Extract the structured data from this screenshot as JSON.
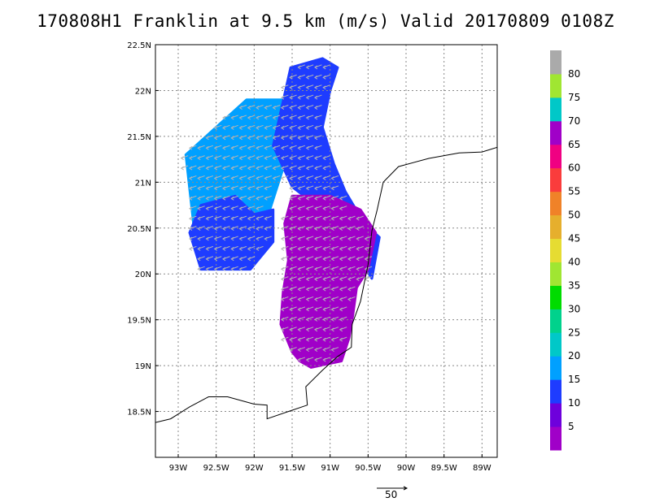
{
  "chart_data": {
    "type": "heatmap",
    "title": "170808H1 Franklin at 9.5 km (m/s) Valid 20170809 0108Z",
    "xlim": [
      -93.3,
      -88.8
    ],
    "ylim": [
      18.0,
      22.5
    ],
    "x_ticks": [
      -93,
      -92.5,
      -92,
      -91.5,
      -91,
      -90.5,
      -90,
      -89.5,
      -89
    ],
    "x_tick_labels": [
      "93W",
      "92.5W",
      "92W",
      "91.5W",
      "91W",
      "90.5W",
      "90W",
      "89.5W",
      "89W"
    ],
    "y_ticks": [
      18.5,
      19,
      19.5,
      20,
      20.5,
      21,
      21.5,
      22,
      22.5
    ],
    "y_tick_labels": [
      "18.5N",
      "19N",
      "19.5N",
      "20N",
      "20.5N",
      "21N",
      "21.5N",
      "22N",
      "22.5N"
    ],
    "grid": true,
    "colorbar": {
      "labels": [
        "5",
        "10",
        "15",
        "20",
        "25",
        "30",
        "35",
        "40",
        "45",
        "50",
        "55",
        "60",
        "65",
        "70",
        "75",
        "80"
      ],
      "colors": [
        "#a000c8",
        "#6e00dc",
        "#1e3cff",
        "#00a0ff",
        "#00c8c8",
        "#00d28c",
        "#00dc00",
        "#a0e632",
        "#e6dc32",
        "#e6af2d",
        "#f08228",
        "#fa3c3c",
        "#f00082",
        "#a000c8",
        "#00c8c8",
        "#a0e632",
        "#aaaaaa"
      ]
    },
    "vector_reference": {
      "label": "50",
      "value": 50
    },
    "coastline": [
      [
        -93.3,
        18.38
      ],
      [
        -93.1,
        18.42
      ],
      [
        -92.85,
        18.55
      ],
      [
        -92.6,
        18.66
      ],
      [
        -92.35,
        18.66
      ],
      [
        -92.0,
        18.58
      ],
      [
        -91.83,
        18.57
      ],
      [
        -91.83,
        18.42
      ],
      [
        -91.55,
        18.5
      ],
      [
        -91.3,
        18.57
      ],
      [
        -91.32,
        18.77
      ],
      [
        -91.1,
        18.95
      ],
      [
        -90.9,
        19.1
      ],
      [
        -90.72,
        19.2
      ],
      [
        -90.71,
        19.45
      ],
      [
        -90.6,
        19.7
      ],
      [
        -90.5,
        20.1
      ],
      [
        -90.45,
        20.47
      ],
      [
        -90.38,
        20.7
      ],
      [
        -90.3,
        21.0
      ],
      [
        -90.1,
        21.17
      ],
      [
        -89.7,
        21.26
      ],
      [
        -89.3,
        21.32
      ],
      [
        -89.0,
        21.33
      ],
      [
        -88.8,
        21.38
      ]
    ],
    "regions": [
      {
        "level": 3,
        "polygon": [
          [
            -92.9,
            21.3
          ],
          [
            -92.1,
            21.9
          ],
          [
            -91.55,
            21.9
          ],
          [
            -91.6,
            21.2
          ],
          [
            -91.85,
            20.55
          ],
          [
            -92.45,
            20.5
          ],
          [
            -92.8,
            20.55
          ]
        ]
      },
      {
        "level": 2,
        "polygon": [
          [
            -92.7,
            20.75
          ],
          [
            -92.25,
            20.85
          ],
          [
            -92.0,
            20.65
          ],
          [
            -91.75,
            20.7
          ],
          [
            -91.75,
            20.35
          ],
          [
            -92.05,
            20.05
          ],
          [
            -92.7,
            20.05
          ],
          [
            -92.85,
            20.45
          ]
        ]
      },
      {
        "level": 2,
        "polygon": [
          [
            -91.52,
            22.25
          ],
          [
            -91.1,
            22.35
          ],
          [
            -90.9,
            22.25
          ],
          [
            -91.0,
            22.0
          ],
          [
            -91.1,
            21.6
          ],
          [
            -90.95,
            21.2
          ],
          [
            -90.8,
            20.9
          ],
          [
            -90.55,
            20.55
          ],
          [
            -90.35,
            20.4
          ],
          [
            -90.45,
            19.95
          ],
          [
            -90.95,
            20.6
          ],
          [
            -91.5,
            20.95
          ],
          [
            -91.75,
            21.4
          ]
        ]
      },
      {
        "level": 0,
        "polygon": [
          [
            -91.5,
            20.85
          ],
          [
            -91.0,
            20.85
          ],
          [
            -90.6,
            20.7
          ],
          [
            -90.4,
            20.45
          ],
          [
            -90.5,
            20.05
          ],
          [
            -90.65,
            19.85
          ],
          [
            -90.7,
            19.55
          ],
          [
            -90.75,
            19.3
          ],
          [
            -90.85,
            19.05
          ],
          [
            -91.25,
            18.98
          ],
          [
            -91.4,
            19.05
          ],
          [
            -91.5,
            19.15
          ],
          [
            -91.65,
            19.45
          ],
          [
            -91.62,
            19.8
          ],
          [
            -91.55,
            20.15
          ],
          [
            -91.6,
            20.55
          ]
        ]
      }
    ]
  }
}
